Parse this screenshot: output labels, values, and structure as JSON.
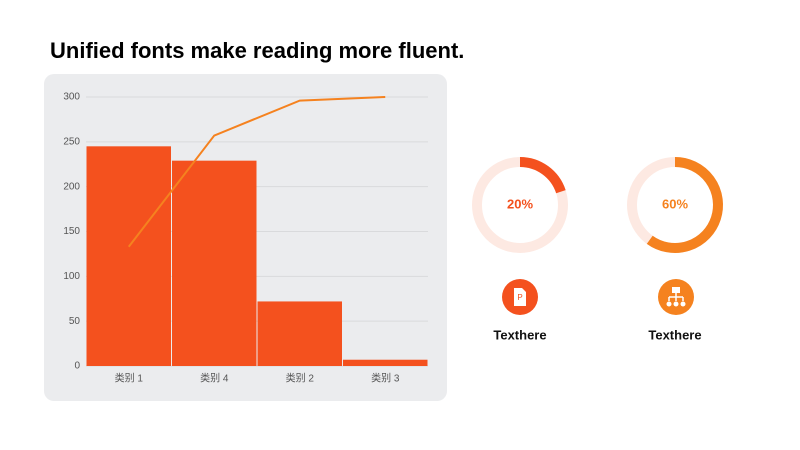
{
  "title": "Unified fonts make reading more fluent.",
  "chart_data": {
    "type": "bar",
    "categories": [
      "类别 1",
      "类别 4",
      "类别 2",
      "类别 3"
    ],
    "series": [
      {
        "type": "bar",
        "color": "#f4511e",
        "values": [
          245,
          229,
          72,
          7
        ]
      },
      {
        "type": "line",
        "color": "#f5821f",
        "values": [
          133,
          257,
          296,
          300
        ]
      }
    ],
    "ylim": [
      0,
      300
    ],
    "yticks": [
      0,
      50,
      100,
      150,
      200,
      250,
      300
    ],
    "grid": true
  },
  "gauges": [
    {
      "value": 20,
      "value_label": "20%",
      "color": "#f4511e",
      "track": "#fde9e2",
      "label": "Texthere"
    },
    {
      "value": 60,
      "value_label": "60%",
      "color": "#f5821f",
      "track": "#fde9e2",
      "label": "Texthere"
    }
  ]
}
